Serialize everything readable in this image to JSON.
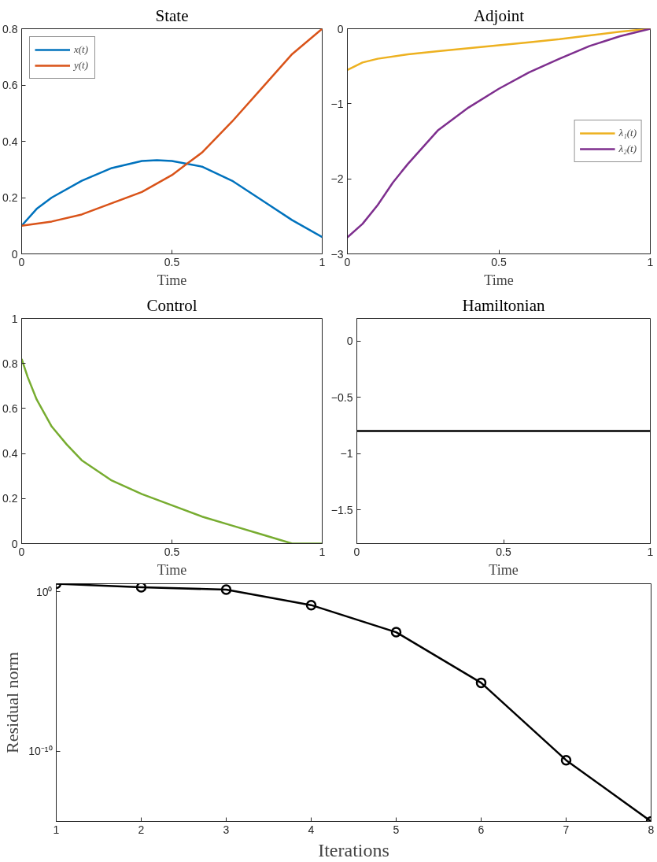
{
  "chart_data": [
    {
      "type": "line",
      "title": "State",
      "xlabel": "Time",
      "xlim": [
        0,
        1
      ],
      "xticks": [
        0,
        0.5,
        1
      ],
      "ylim": [
        0,
        0.8
      ],
      "yticks": [
        0,
        0.2,
        0.4,
        0.6,
        0.8
      ],
      "grid": false,
      "legend": "top left",
      "series": [
        {
          "name": "x(t)",
          "color": "#0072bd",
          "x": [
            0,
            0.05,
            0.1,
            0.2,
            0.3,
            0.4,
            0.45,
            0.5,
            0.6,
            0.7,
            0.8,
            0.9,
            1
          ],
          "values": [
            0.1,
            0.16,
            0.2,
            0.26,
            0.305,
            0.33,
            0.333,
            0.33,
            0.31,
            0.26,
            0.19,
            0.12,
            0.06
          ]
        },
        {
          "name": "y(t)",
          "color": "#d95319",
          "x": [
            0,
            0.1,
            0.2,
            0.3,
            0.4,
            0.5,
            0.55,
            0.6,
            0.7,
            0.8,
            0.9,
            1
          ],
          "values": [
            0.1,
            0.115,
            0.14,
            0.18,
            0.22,
            0.28,
            0.32,
            0.36,
            0.47,
            0.59,
            0.71,
            0.8
          ]
        }
      ]
    },
    {
      "type": "line",
      "title": "Adjoint",
      "xlabel": "Time",
      "xlim": [
        0,
        1
      ],
      "xticks": [
        0,
        0.5,
        1
      ],
      "ylim": [
        -3,
        0
      ],
      "yticks": [
        -3,
        -2,
        -1,
        0
      ],
      "grid": false,
      "legend": "right",
      "series": [
        {
          "name": "λ₁(t)",
          "color": "#edb120",
          "x": [
            0,
            0.05,
            0.1,
            0.2,
            0.3,
            0.4,
            0.5,
            0.6,
            0.7,
            0.8,
            0.9,
            1
          ],
          "values": [
            -0.55,
            -0.45,
            -0.4,
            -0.34,
            -0.3,
            -0.26,
            -0.22,
            -0.18,
            -0.14,
            -0.09,
            -0.04,
            0
          ]
        },
        {
          "name": "λ₂(t)",
          "color": "#7e2f8e",
          "x": [
            0,
            0.05,
            0.1,
            0.15,
            0.2,
            0.3,
            0.4,
            0.5,
            0.6,
            0.7,
            0.8,
            0.9,
            1
          ],
          "values": [
            -2.78,
            -2.6,
            -2.35,
            -2.05,
            -1.8,
            -1.35,
            -1.05,
            -0.8,
            -0.58,
            -0.4,
            -0.23,
            -0.1,
            0
          ]
        }
      ]
    },
    {
      "type": "line",
      "title": "Control",
      "xlabel": "Time",
      "xlim": [
        0,
        1
      ],
      "xticks": [
        0,
        0.5,
        1
      ],
      "ylim": [
        0,
        1
      ],
      "yticks": [
        0,
        0.2,
        0.4,
        0.6,
        0.8,
        1
      ],
      "grid": false,
      "series": [
        {
          "color": "#77ac30",
          "x": [
            0,
            0.02,
            0.05,
            0.1,
            0.15,
            0.2,
            0.3,
            0.4,
            0.5,
            0.6,
            0.7,
            0.8,
            0.9,
            1
          ],
          "values": [
            0.82,
            0.74,
            0.64,
            0.52,
            0.44,
            0.37,
            0.28,
            0.22,
            0.17,
            0.12,
            0.08,
            0.04,
            0,
            0
          ]
        }
      ]
    },
    {
      "type": "line",
      "title": "Hamiltonian",
      "xlabel": "Time",
      "xlim": [
        0,
        1
      ],
      "xticks": [
        0,
        0.5,
        1
      ],
      "ylim": [
        -1.8,
        0.2
      ],
      "yticks": [
        -1.5,
        -1,
        -0.5,
        0
      ],
      "grid": false,
      "series": [
        {
          "color": "#000000",
          "x": [
            0,
            1
          ],
          "values": [
            -0.8,
            -0.8
          ]
        }
      ]
    },
    {
      "type": "line",
      "xlabel": "Iterations",
      "ylabel": "Residual norm",
      "log": true,
      "marker": "circle",
      "xlim": [
        1,
        8
      ],
      "xticks": [
        1,
        2,
        3,
        4,
        5,
        6,
        7,
        8
      ],
      "ylim": [
        4e-15,
        3.3
      ],
      "yticks": [
        {
          "value": 1e-10,
          "label": "10⁻¹⁰"
        },
        {
          "value": 1,
          "label": "10⁰"
        }
      ],
      "grid": false,
      "series": [
        {
          "color": "#000000",
          "x": [
            1,
            2,
            3,
            4,
            5,
            6,
            7,
            8
          ],
          "values": [
            3.3,
            2,
            1.4,
            0.15,
            0.003,
            2e-06,
            2.8e-11,
            4e-15
          ]
        }
      ]
    }
  ]
}
